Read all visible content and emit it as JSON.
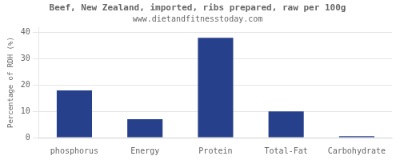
{
  "chart_data": {
    "type": "bar",
    "title": "Beef, New Zealand, imported, ribs prepared, raw per 100g",
    "subtitle": "www.dietandfitnesstoday.com",
    "categories": [
      "phosphorus",
      "Energy",
      "Protein",
      "Total-Fat",
      "Carbohydrate"
    ],
    "values": [
      18,
      7,
      38,
      10,
      0.5
    ],
    "color": "#27408B",
    "ylabel": "Percentage of RDH (%)",
    "ylim": [
      0,
      42
    ],
    "yticks": [
      0,
      10,
      20,
      30,
      40
    ],
    "grid": true
  }
}
